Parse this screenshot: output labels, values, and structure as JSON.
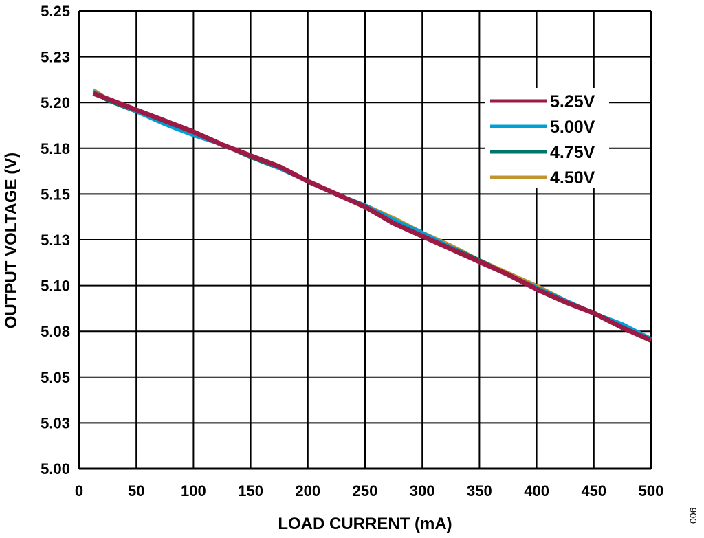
{
  "chart_data": {
    "type": "line",
    "title": "",
    "xlabel": "LOAD CURRENT (mA)",
    "ylabel": "OUTPUT VOLTAGE (V)",
    "xlim": [
      0,
      500
    ],
    "ylim": [
      5.0,
      5.25
    ],
    "xticks": [
      0,
      50,
      100,
      150,
      200,
      250,
      300,
      350,
      400,
      450,
      500
    ],
    "xtick_labels": [
      "0",
      "50",
      "100",
      "150",
      "200",
      "250",
      "300",
      "350",
      "400",
      "450",
      "500"
    ],
    "yticks": [
      5.0,
      5.025,
      5.05,
      5.075,
      5.1,
      5.125,
      5.15,
      5.175,
      5.2,
      5.225,
      5.25
    ],
    "ytick_labels": [
      "5.00",
      "5.03",
      "5.05",
      "5.08",
      "5.10",
      "5.13",
      "5.15",
      "5.18",
      "5.20",
      "5.23",
      "5.25"
    ],
    "grid": true,
    "legend_position": "top-right",
    "x": [
      12.5,
      25,
      50,
      75,
      100,
      125,
      150,
      175,
      200,
      225,
      250,
      275,
      300,
      325,
      350,
      375,
      400,
      425,
      450,
      475,
      500
    ],
    "series": [
      {
        "name": "5.25V",
        "color": "#9b1b45",
        "values": [
          5.205,
          5.202,
          5.196,
          5.19,
          5.184,
          5.177,
          5.171,
          5.165,
          5.157,
          5.15,
          5.143,
          5.134,
          5.127,
          5.12,
          5.113,
          5.106,
          5.098,
          5.091,
          5.085,
          5.077,
          5.07
        ]
      },
      {
        "name": "5.00V",
        "color": "#00a0d6",
        "values": [
          5.206,
          5.202,
          5.195,
          5.188,
          5.182,
          5.177,
          5.171,
          5.164,
          5.157,
          5.15,
          5.144,
          5.136,
          5.129,
          5.121,
          5.113,
          5.106,
          5.099,
          5.092,
          5.085,
          5.079,
          5.071
        ]
      },
      {
        "name": "4.75V",
        "color": "#00756a",
        "values": [
          5.206,
          5.201,
          5.195,
          5.189,
          5.183,
          5.177,
          5.17,
          5.164,
          5.157,
          5.15,
          5.143,
          5.136,
          5.128,
          5.121,
          5.114,
          5.106,
          5.099,
          5.092,
          5.085,
          5.078,
          5.07
        ]
      },
      {
        "name": "4.50V",
        "color": "#c0952f",
        "values": [
          5.207,
          5.202,
          5.196,
          5.189,
          5.183,
          5.177,
          5.171,
          5.164,
          5.157,
          5.15,
          5.144,
          5.137,
          5.129,
          5.122,
          5.114,
          5.107,
          5.1,
          5.092,
          5.085,
          5.078,
          5.07
        ]
      }
    ],
    "annotation": "006"
  }
}
